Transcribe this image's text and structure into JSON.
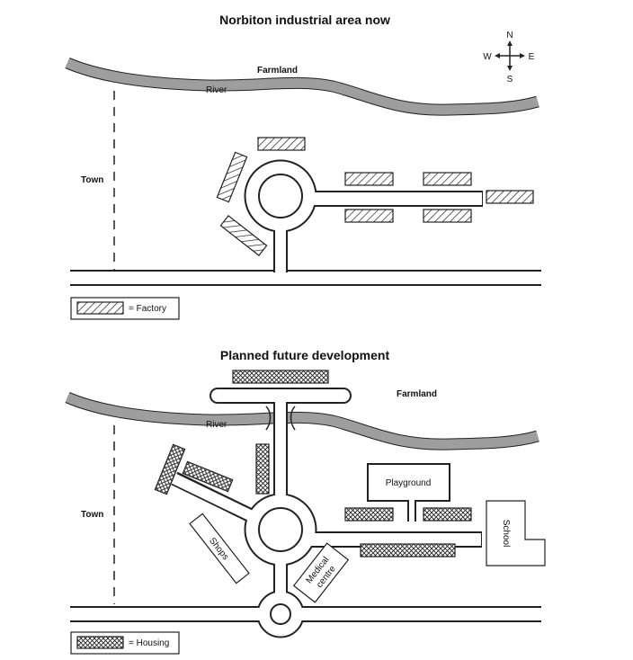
{
  "map_top": {
    "title": "Norbiton industrial area now",
    "labels": {
      "farmland": "Farmland",
      "river": "River",
      "town": "Town"
    },
    "compass": {
      "n": "N",
      "s": "S",
      "e": "E",
      "w": "W"
    },
    "legend": {
      "label": "= Factory"
    }
  },
  "map_bottom": {
    "title": "Planned future development",
    "labels": {
      "farmland": "Farmland",
      "river": "River",
      "town": "Town",
      "playground": "Playground",
      "school": "School",
      "shops": "Shops",
      "medical_line1": "Medical",
      "medical_line2": "centre"
    },
    "legend": {
      "label": "= Housing"
    }
  }
}
